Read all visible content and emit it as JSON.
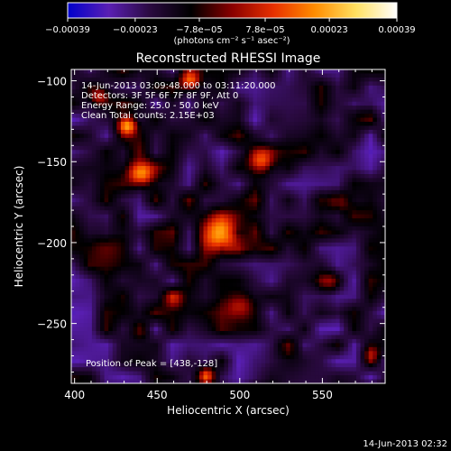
{
  "chart_data": {
    "type": "heatmap",
    "title": "Reconstructed RHESSI Image",
    "xlabel": "Heliocentric X (arcsec)",
    "ylabel": "Heliocentric Y (arcsec)",
    "xlim": [
      398,
      588
    ],
    "ylim": [
      -287,
      -93
    ],
    "x_ticks": [
      400,
      450,
      500,
      550
    ],
    "y_ticks": [
      -100,
      -150,
      -200,
      -250
    ],
    "x_tick_labels": [
      "400",
      "450",
      "500",
      "550"
    ],
    "y_tick_labels": [
      "−100",
      "−150",
      "−200",
      "−250"
    ],
    "colorbar": {
      "range": [
        -0.00039,
        0.00039
      ],
      "ticks": [
        -0.00039,
        -0.00023,
        -7.8e-05,
        7.8e-05,
        0.00023,
        0.00039
      ],
      "tick_labels": [
        "−0.00039",
        "−0.00023",
        "−7.8e−05",
        "7.8e−05",
        "0.00023",
        "0.00039"
      ],
      "units": "(photons cm⁻² s⁻¹ asec⁻²)",
      "colors": [
        "#0000cc",
        "#5a1fb4",
        "#2a0a40",
        "#000000",
        "#8a0000",
        "#e83000",
        "#ff8c00",
        "#ffe060",
        "#ffffff"
      ]
    },
    "peak": [
      438,
      -128
    ],
    "bright_sources": [
      {
        "x": 488,
        "y": -195,
        "sigma": 20,
        "amp": 1.0
      },
      {
        "x": 440,
        "y": -158,
        "sigma": 13,
        "amp": 0.85
      },
      {
        "x": 432,
        "y": -128,
        "sigma": 10,
        "amp": 0.95
      },
      {
        "x": 513,
        "y": -150,
        "sigma": 13,
        "amp": 0.7
      },
      {
        "x": 470,
        "y": -100,
        "sigma": 10,
        "amp": 0.7
      },
      {
        "x": 415,
        "y": -110,
        "sigma": 10,
        "amp": 0.55
      },
      {
        "x": 560,
        "y": -175,
        "sigma": 12,
        "amp": 0.45
      },
      {
        "x": 555,
        "y": -225,
        "sigma": 12,
        "amp": 0.4
      },
      {
        "x": 500,
        "y": -240,
        "sigma": 14,
        "amp": 0.45
      },
      {
        "x": 460,
        "y": -235,
        "sigma": 10,
        "amp": 0.35
      },
      {
        "x": 440,
        "y": -255,
        "sigma": 10,
        "amp": 0.35
      },
      {
        "x": 480,
        "y": -283,
        "sigma": 8,
        "amp": 0.55
      },
      {
        "x": 580,
        "y": -270,
        "sigma": 9,
        "amp": 0.35
      }
    ],
    "dim_sources": [
      {
        "x": 420,
        "y": -200,
        "sigma": 16,
        "amp": 0.5
      },
      {
        "x": 530,
        "y": -270,
        "sigma": 12,
        "amp": 0.35
      },
      {
        "x": 570,
        "y": -120,
        "sigma": 10,
        "amp": 0.35
      }
    ]
  },
  "annotations": {
    "time": "14-Jun-2013 03:09:48.000 to 03:11:20.000",
    "detectors": "Detectors: 3F 5F 6F 7F 8F 9F, Att 0",
    "energy": "Energy Range: 25.0 - 50.0 keV",
    "clean": "Clean      Total counts: 2.15E+03",
    "peak": "Position of Peak = [438,-128]"
  },
  "footer": {
    "timestamp": "14-Jun-2013 02:32"
  }
}
